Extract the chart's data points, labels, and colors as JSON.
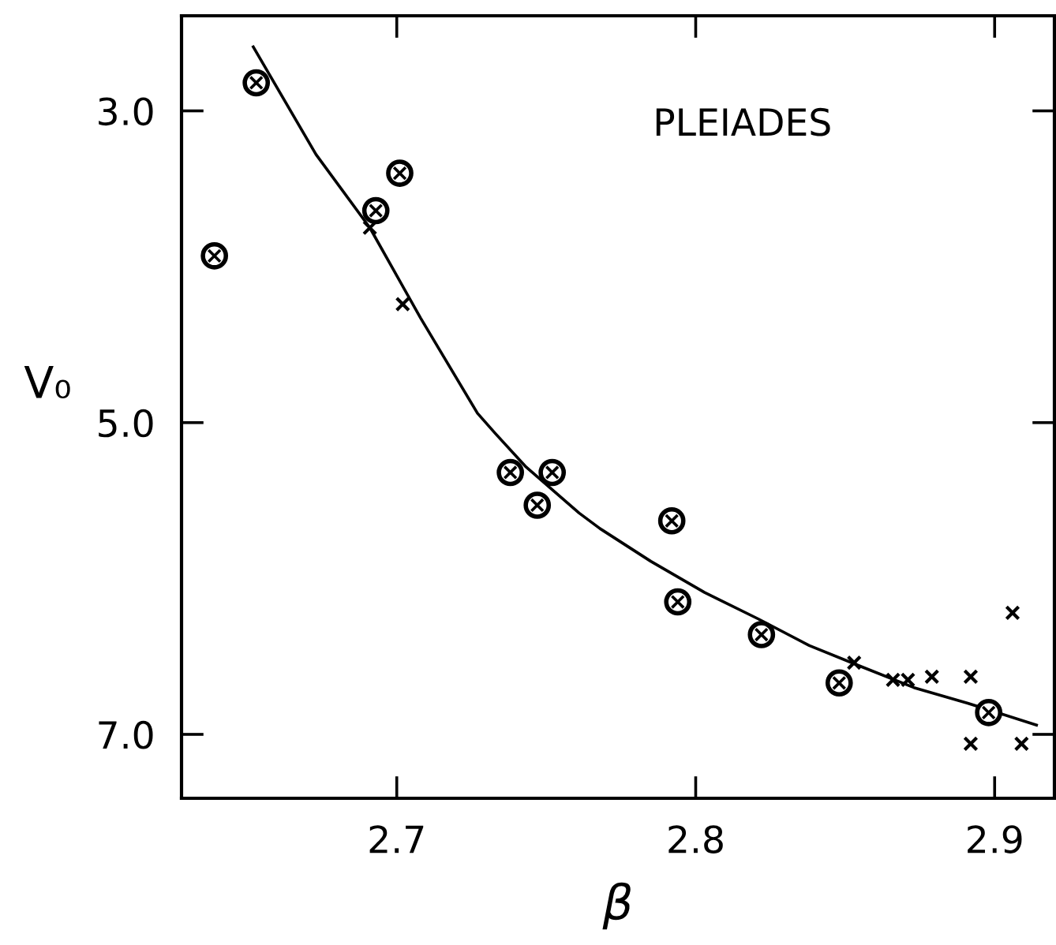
{
  "chart_data": {
    "type": "scatter",
    "xlabel": "β",
    "ylabel": "V₀",
    "annotations": [
      "PLEIADES"
    ],
    "xlim": [
      2.628,
      2.92
    ],
    "ylim": [
      7.41,
      2.39
    ],
    "xticks": [
      2.7,
      2.8,
      2.9
    ],
    "yticks": [
      {
        "value": 3,
        "label": "3.0"
      },
      {
        "value": 5,
        "label": "5.0"
      },
      {
        "value": 7,
        "label": "7.0"
      }
    ],
    "grid": false,
    "legend": false,
    "series": [
      {
        "marker": "circle",
        "color": "#000000",
        "x": [
          2.639,
          2.653,
          2.693,
          2.701,
          2.738,
          2.747,
          2.752,
          2.792,
          2.794,
          2.822,
          2.848,
          2.898
        ],
        "values": [
          3.93,
          2.82,
          3.64,
          3.4,
          5.32,
          5.53,
          5.32,
          5.63,
          6.15,
          6.36,
          6.67,
          6.86
        ]
      },
      {
        "marker": "cross",
        "color": "#000000",
        "x": [
          2.691,
          2.702,
          2.853,
          2.866,
          2.871,
          2.879,
          2.892,
          2.892,
          2.906,
          2.909
        ],
        "values": [
          3.75,
          4.24,
          6.54,
          6.65,
          6.65,
          6.63,
          6.63,
          7.06,
          6.22,
          7.06
        ]
      },
      {
        "type": "line",
        "line_style": "solid",
        "color": "#000000",
        "x": [
          2.652,
          2.673,
          2.691,
          2.708,
          2.727,
          2.733,
          2.743,
          2.761,
          2.768,
          2.785,
          2.803,
          2.821,
          2.838,
          2.856,
          2.873,
          2.891,
          2.914
        ],
        "values": [
          2.59,
          3.28,
          3.75,
          4.33,
          4.94,
          5.07,
          5.28,
          5.58,
          5.68,
          5.89,
          6.09,
          6.26,
          6.43,
          6.57,
          6.7,
          6.8,
          6.94
        ]
      }
    ]
  }
}
